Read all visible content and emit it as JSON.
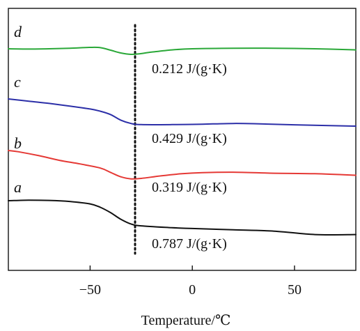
{
  "chart_data": {
    "type": "line",
    "xlabel": "Temperature/℃",
    "ylabel": "",
    "xlim": [
      -90,
      80
    ],
    "xticks": [
      -50,
      0,
      50
    ],
    "grid": false,
    "vline": {
      "x": -28,
      "style": "dotted",
      "color": "#111111"
    },
    "series": [
      {
        "name": "d",
        "color": "#2aa838",
        "annotation": "0.212 J/(g·K)",
        "points": [
          [
            -90,
            1.0
          ],
          [
            -80,
            0.99
          ],
          [
            -70,
            1.0
          ],
          [
            -60,
            1.02
          ],
          [
            -50,
            1.05
          ],
          [
            -45,
            1.04
          ],
          [
            -40,
            0.95
          ],
          [
            -35,
            0.85
          ],
          [
            -30,
            0.8
          ],
          [
            -26,
            0.82
          ],
          [
            -20,
            0.88
          ],
          [
            -10,
            0.96
          ],
          [
            0,
            1.0
          ],
          [
            20,
            1.02
          ],
          [
            40,
            1.02
          ],
          [
            60,
            1.0
          ],
          [
            80,
            0.96
          ]
        ]
      },
      {
        "name": "c",
        "color": "#2c2fa8",
        "annotation": "0.429 J/(g·K)",
        "points": [
          [
            -90,
            0.0
          ],
          [
            -80,
            -0.1
          ],
          [
            -70,
            -0.2
          ],
          [
            -60,
            -0.32
          ],
          [
            -50,
            -0.45
          ],
          [
            -45,
            -0.55
          ],
          [
            -40,
            -0.7
          ],
          [
            -35,
            -0.95
          ],
          [
            -30,
            -1.1
          ],
          [
            -25,
            -1.15
          ],
          [
            -10,
            -1.15
          ],
          [
            0,
            -1.14
          ],
          [
            10,
            -1.12
          ],
          [
            20,
            -1.1
          ],
          [
            30,
            -1.11
          ],
          [
            50,
            -1.16
          ],
          [
            80,
            -1.22
          ]
        ]
      },
      {
        "name": "b",
        "color": "#e53935",
        "annotation": "0.319 J/(g·K)",
        "points": [
          [
            -90,
            0.0
          ],
          [
            -85,
            -0.05
          ],
          [
            -75,
            -0.2
          ],
          [
            -65,
            -0.38
          ],
          [
            -55,
            -0.52
          ],
          [
            -45,
            -0.68
          ],
          [
            -40,
            -0.85
          ],
          [
            -35,
            -1.02
          ],
          [
            -30,
            -1.1
          ],
          [
            -25,
            -1.08
          ],
          [
            -15,
            -0.98
          ],
          [
            -5,
            -0.9
          ],
          [
            5,
            -0.86
          ],
          [
            20,
            -0.84
          ],
          [
            40,
            -0.88
          ],
          [
            60,
            -0.9
          ],
          [
            80,
            -0.96
          ]
        ]
      },
      {
        "name": "a",
        "color": "#111111",
        "annotation": "0.787 J/(g·K)",
        "points": [
          [
            -90,
            0.0
          ],
          [
            -80,
            0.02
          ],
          [
            -70,
            0.01
          ],
          [
            -60,
            -0.03
          ],
          [
            -50,
            -0.12
          ],
          [
            -45,
            -0.25
          ],
          [
            -40,
            -0.45
          ],
          [
            -35,
            -0.7
          ],
          [
            -30,
            -0.88
          ],
          [
            -25,
            -0.95
          ],
          [
            -10,
            -1.02
          ],
          [
            0,
            -1.05
          ],
          [
            20,
            -1.1
          ],
          [
            40,
            -1.15
          ],
          [
            60,
            -1.28
          ],
          [
            80,
            -1.28
          ]
        ]
      }
    ]
  }
}
